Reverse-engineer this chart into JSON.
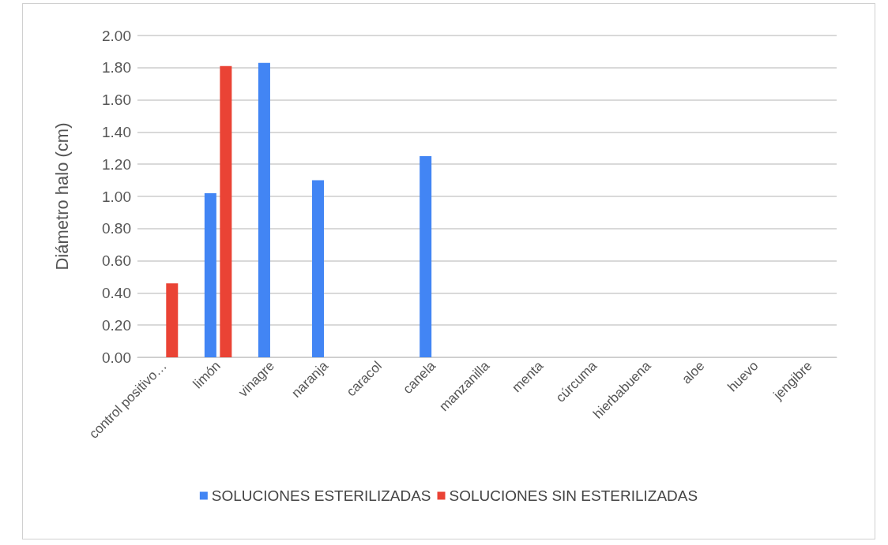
{
  "chart_data": {
    "type": "bar",
    "ylabel": "Diámetro halo (cm)",
    "categories": [
      "control positivo…",
      "limón",
      "vinagre",
      "naranja",
      "caracol",
      "canela",
      "manzanilla",
      "menta",
      "cúrcuma",
      "hierbabuena",
      "aloe",
      "huevo",
      "jengibre"
    ],
    "series": [
      {
        "name": "SOLUCIONES ESTERILIZADAS",
        "color": "#4285f4",
        "values": [
          0,
          1.02,
          1.83,
          1.1,
          0,
          1.25,
          0,
          0,
          0,
          0,
          0,
          0,
          0
        ]
      },
      {
        "name": "SOLUCIONES SIN ESTERILIZADAS",
        "color": "#ea4335",
        "values": [
          0.46,
          1.81,
          0,
          0,
          0,
          0,
          0,
          0,
          0,
          0,
          0,
          0,
          0
        ]
      }
    ],
    "ylim": [
      0,
      2
    ],
    "yticks": [
      {
        "value": 0,
        "label": "0.00"
      },
      {
        "value": 0.2,
        "label": "0.20"
      },
      {
        "value": 0.4,
        "label": "0.40"
      },
      {
        "value": 0.6,
        "label": "0.60"
      },
      {
        "value": 0.8,
        "label": "0.80"
      },
      {
        "value": 1,
        "label": "1.00"
      },
      {
        "value": 1.2,
        "label": "1.20"
      },
      {
        "value": 1.4,
        "label": "1.40"
      },
      {
        "value": 1.6,
        "label": "1.60"
      },
      {
        "value": 1.8,
        "label": "1.80"
      },
      {
        "value": 2,
        "label": "2.00"
      }
    ],
    "grid": "y",
    "legend": "bottom"
  }
}
